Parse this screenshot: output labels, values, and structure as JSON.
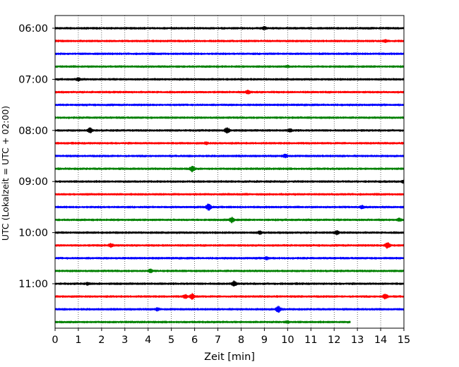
{
  "chart_data": {
    "type": "line",
    "xlabel": "Zeit  [min]",
    "ylabel": "UTC (Lokalzeit = UTC + 02:00)",
    "xlim": [
      0,
      15
    ],
    "x_ticks": [
      "0",
      "1",
      "2",
      "3",
      "4",
      "5",
      "6",
      "7",
      "8",
      "9",
      "10",
      "11",
      "12",
      "13",
      "14",
      "15"
    ],
    "y_ticks": [
      "06:00",
      "07:00",
      "08:00",
      "09:00",
      "10:00",
      "11:00"
    ],
    "grid": "vertical dotted",
    "colors": [
      "#000000",
      "#ff0000",
      "#0000ff",
      "#008000"
    ],
    "series": [
      {
        "start": "06:00",
        "color": "#000000",
        "end_min": 15,
        "events": [
          [
            9.0,
            2.5
          ]
        ]
      },
      {
        "start": "06:15",
        "color": "#ff0000",
        "end_min": 15,
        "events": [
          [
            14.2,
            2.0
          ]
        ]
      },
      {
        "start": "06:30",
        "color": "#0000ff",
        "end_min": 15,
        "events": []
      },
      {
        "start": "06:45",
        "color": "#008000",
        "end_min": 15,
        "events": [
          [
            10.0,
            2.0
          ]
        ]
      },
      {
        "start": "07:00",
        "color": "#000000",
        "end_min": 15,
        "events": [
          [
            1.0,
            2.5
          ]
        ]
      },
      {
        "start": "07:15",
        "color": "#ff0000",
        "end_min": 15,
        "events": [
          [
            8.3,
            3.0
          ]
        ]
      },
      {
        "start": "07:30",
        "color": "#0000ff",
        "end_min": 15,
        "events": []
      },
      {
        "start": "07:45",
        "color": "#008000",
        "end_min": 15,
        "events": []
      },
      {
        "start": "08:00",
        "color": "#000000",
        "end_min": 15,
        "events": [
          [
            1.5,
            4.0
          ],
          [
            7.4,
            4.5
          ],
          [
            10.1,
            2.5
          ]
        ]
      },
      {
        "start": "08:15",
        "color": "#ff0000",
        "end_min": 15,
        "events": [
          [
            6.5,
            2.0
          ]
        ]
      },
      {
        "start": "08:30",
        "color": "#0000ff",
        "end_min": 15,
        "events": [
          [
            9.9,
            3.0
          ]
        ]
      },
      {
        "start": "08:45",
        "color": "#008000",
        "end_min": 15,
        "events": [
          [
            5.9,
            4.5
          ]
        ]
      },
      {
        "start": "09:00",
        "color": "#000000",
        "end_min": 15,
        "events": [
          [
            15.0,
            3.0
          ]
        ]
      },
      {
        "start": "09:15",
        "color": "#ff0000",
        "end_min": 15,
        "events": []
      },
      {
        "start": "09:30",
        "color": "#0000ff",
        "end_min": 15,
        "events": [
          [
            6.6,
            5.0
          ],
          [
            13.2,
            2.5
          ]
        ]
      },
      {
        "start": "09:45",
        "color": "#008000",
        "end_min": 15,
        "events": [
          [
            7.6,
            4.0
          ],
          [
            14.8,
            2.5
          ]
        ]
      },
      {
        "start": "10:00",
        "color": "#000000",
        "end_min": 15,
        "events": [
          [
            8.8,
            2.5
          ],
          [
            12.1,
            3.0
          ]
        ]
      },
      {
        "start": "10:15",
        "color": "#ff0000",
        "end_min": 15,
        "events": [
          [
            2.4,
            3.0
          ],
          [
            14.3,
            5.0
          ]
        ]
      },
      {
        "start": "10:30",
        "color": "#0000ff",
        "end_min": 15,
        "events": [
          [
            9.1,
            2.5
          ]
        ]
      },
      {
        "start": "10:45",
        "color": "#008000",
        "end_min": 15,
        "events": [
          [
            4.1,
            3.0
          ]
        ]
      },
      {
        "start": "11:00",
        "color": "#000000",
        "end_min": 15,
        "events": [
          [
            1.4,
            2.0
          ],
          [
            7.7,
            4.0
          ]
        ]
      },
      {
        "start": "11:15",
        "color": "#ff0000",
        "end_min": 15,
        "events": [
          [
            5.6,
            3.0
          ],
          [
            5.9,
            4.5
          ],
          [
            14.2,
            4.0
          ]
        ]
      },
      {
        "start": "11:30",
        "color": "#0000ff",
        "end_min": 15,
        "events": [
          [
            4.4,
            2.5
          ],
          [
            9.6,
            5.0
          ]
        ]
      },
      {
        "start": "11:45",
        "color": "#008000",
        "end_min": 12.7,
        "events": [
          [
            10.0,
            2.0
          ]
        ]
      }
    ]
  }
}
